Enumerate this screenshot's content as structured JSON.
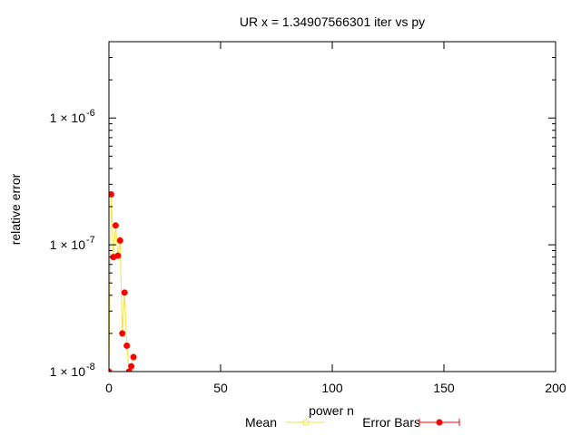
{
  "chart_data": {
    "type": "line",
    "title": "UR x = 1.34907566301 iter vs py",
    "xlabel": "power n",
    "ylabel": "relative error",
    "xlim": [
      0,
      200
    ],
    "ylim": [
      1e-08,
      4e-06
    ],
    "yscale": "log",
    "grid": false,
    "legend_position": "bottom-center",
    "x_ticks": [
      {
        "value": 0,
        "label": "0"
      },
      {
        "value": 50,
        "label": "50"
      },
      {
        "value": 100,
        "label": "100"
      },
      {
        "value": 150,
        "label": "150"
      },
      {
        "value": 200,
        "label": "200"
      }
    ],
    "y_ticks": [
      {
        "value": 1e-08,
        "base": "1 × 10",
        "exp": "-8"
      },
      {
        "value": 1e-07,
        "base": "1 × 10",
        "exp": "-7"
      },
      {
        "value": 1e-06,
        "base": "1 × 10",
        "exp": "-6"
      }
    ],
    "series": [
      {
        "name": "Mean",
        "color": "#f0e442",
        "marker": "open-circle",
        "x": [
          0,
          1,
          2,
          3,
          4,
          5,
          6,
          7,
          8,
          9,
          10,
          11
        ],
        "y": [
          1e-08,
          2.5e-07,
          8e-08,
          1.42e-07,
          8.2e-08,
          1.08e-07,
          2e-08,
          4.2e-08,
          1.6e-08,
          1e-08,
          1.1e-08,
          1.3e-08
        ]
      },
      {
        "name": "Error Bars",
        "color": "#ff0000",
        "marker": "filled-circle",
        "x": [
          0,
          1,
          2,
          3,
          4,
          5,
          6,
          7,
          8,
          9,
          10,
          11
        ],
        "y": [
          1e-08,
          2.5e-07,
          8e-08,
          1.42e-07,
          8.2e-08,
          1.08e-07,
          2e-08,
          4.2e-08,
          1.6e-08,
          1e-08,
          1.1e-08,
          1.3e-08
        ]
      }
    ]
  }
}
